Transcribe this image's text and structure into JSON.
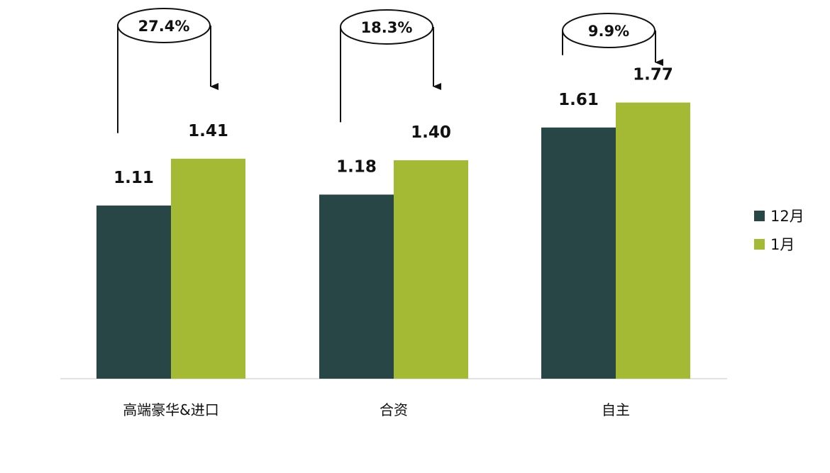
{
  "chart_data": {
    "type": "bar",
    "categories": [
      "高端豪华&进口",
      "合资",
      "自主"
    ],
    "series": [
      {
        "name": "12月",
        "values": [
          1.11,
          1.18,
          1.61
        ],
        "color": "#284646"
      },
      {
        "name": "1月",
        "values": [
          1.41,
          1.4,
          1.77
        ],
        "color": "#a4b934"
      }
    ],
    "growth_labels": [
      "27.4%",
      "18.3%",
      "9.9%"
    ],
    "ylim": [
      0,
      2.43
    ],
    "grid": false,
    "legend": "right"
  }
}
